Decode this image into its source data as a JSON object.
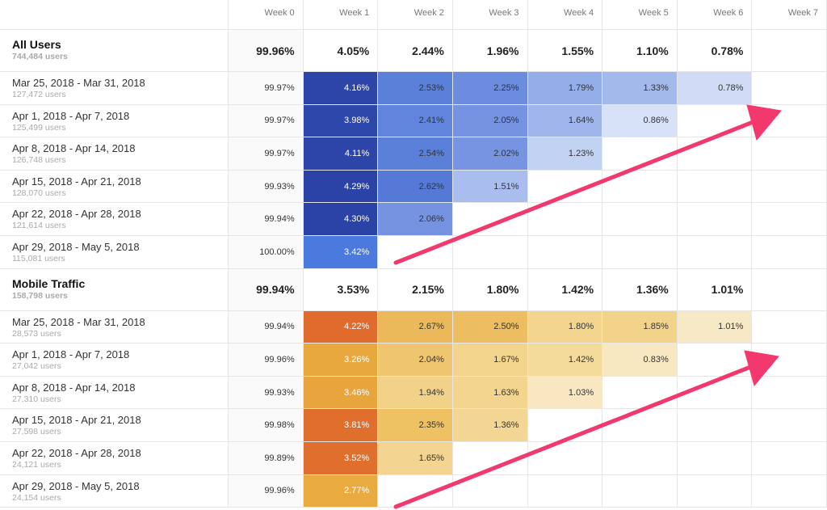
{
  "header": {
    "weeks": [
      "Week 0",
      "Week 1",
      "Week 2",
      "Week 3",
      "Week 4",
      "Week 5",
      "Week 6",
      "Week 7"
    ]
  },
  "sections": [
    {
      "title": "All Users",
      "subtitle": "744,484 users",
      "totals": [
        "99.96%",
        "4.05%",
        "2.44%",
        "1.96%",
        "1.55%",
        "1.10%",
        "0.78%"
      ],
      "rows": [
        {
          "label": "Mar 25, 2018 - Mar 31, 2018",
          "users": "127,472 users",
          "values": [
            "99.97%",
            "4.16%",
            "2.53%",
            "2.25%",
            "1.79%",
            "1.33%",
            "0.78%"
          ],
          "colors": [
            "#fafafa",
            "#2d45a9",
            "#5b80da",
            "#6b8cdf",
            "#94aeea",
            "#a3b9ec",
            "#d0dcf6"
          ]
        },
        {
          "label": "Apr 1, 2018 - Apr 7, 2018",
          "users": "125,499 users",
          "values": [
            "99.97%",
            "3.98%",
            "2.41%",
            "2.05%",
            "1.64%",
            "0.86%"
          ],
          "colors": [
            "#fafafa",
            "#2e47ab",
            "#6184dc",
            "#7593e1",
            "#9fb5ec",
            "#d7e1f7"
          ]
        },
        {
          "label": "Apr 8, 2018 - Apr 14, 2018",
          "users": "126,748 users",
          "values": [
            "99.97%",
            "4.11%",
            "2.54%",
            "2.02%",
            "1.23%"
          ],
          "colors": [
            "#fafafa",
            "#2d45a9",
            "#5a80da",
            "#7694e1",
            "#c2d2f3"
          ]
        },
        {
          "label": "Apr 15, 2018 - Apr 21, 2018",
          "users": "128,070 users",
          "values": [
            "99.93%",
            "4.29%",
            "2.62%",
            "1.51%"
          ],
          "colors": [
            "#fafafa",
            "#2b43a6",
            "#5679d8",
            "#a9bdee"
          ]
        },
        {
          "label": "Apr 22, 2018 - Apr 28, 2018",
          "users": "121,614 users",
          "values": [
            "99.94%",
            "4.30%",
            "2.06%"
          ],
          "colors": [
            "#fafafa",
            "#2b43a6",
            "#7593e1"
          ]
        },
        {
          "label": "Apr 29, 2018 - May 5, 2018",
          "users": "115,081 users",
          "values": [
            "100.00%",
            "3.42%"
          ],
          "colors": [
            "#fafafa",
            "#4a7add"
          ]
        }
      ]
    },
    {
      "title": "Mobile Traffic",
      "subtitle": "158,798 users",
      "totals": [
        "99.94%",
        "3.53%",
        "2.15%",
        "1.80%",
        "1.42%",
        "1.36%",
        "1.01%"
      ],
      "rows": [
        {
          "label": "Mar 25, 2018 - Mar 31, 2018",
          "users": "28,573 users",
          "values": [
            "99.94%",
            "4.22%",
            "2.67%",
            "2.50%",
            "1.80%",
            "1.85%",
            "1.01%"
          ],
          "colors": [
            "#fafafa",
            "#e06b2c",
            "#ecb95a",
            "#edbd61",
            "#f3d58f",
            "#f3d38a",
            "#f8e9c6"
          ]
        },
        {
          "label": "Apr 1, 2018 - Apr 7, 2018",
          "users": "27,042 users",
          "values": [
            "99.96%",
            "3.26%",
            "2.04%",
            "1.67%",
            "1.42%",
            "0.83%"
          ],
          "colors": [
            "#fafafa",
            "#e9a83e",
            "#f0c56f",
            "#f3d48d",
            "#f5db9b",
            "#f8e8c1"
          ]
        },
        {
          "label": "Apr 8, 2018 - Apr 14, 2018",
          "users": "27,310 users",
          "values": [
            "99.93%",
            "3.46%",
            "1.94%",
            "1.63%",
            "1.03%"
          ],
          "colors": [
            "#fafafa",
            "#e8a53d",
            "#f2d189",
            "#f3d590",
            "#f8e7c1"
          ]
        },
        {
          "label": "Apr 15, 2018 - Apr 21, 2018",
          "users": "27,598 users",
          "values": [
            "99.98%",
            "3.81%",
            "2.35%",
            "1.36%"
          ],
          "colors": [
            "#fafafa",
            "#e06e2d",
            "#eec162",
            "#f3d693"
          ]
        },
        {
          "label": "Apr 22, 2018 - Apr 28, 2018",
          "users": "24,121 users",
          "values": [
            "99.89%",
            "3.52%",
            "1.65%"
          ],
          "colors": [
            "#fafafa",
            "#e06f2e",
            "#f3d490"
          ]
        },
        {
          "label": "Apr 29, 2018 - May 5, 2018",
          "users": "24,154 users",
          "values": [
            "99.96%",
            "2.77%"
          ],
          "colors": [
            "#fafafa",
            "#e9aa40"
          ]
        }
      ]
    }
  ]
}
